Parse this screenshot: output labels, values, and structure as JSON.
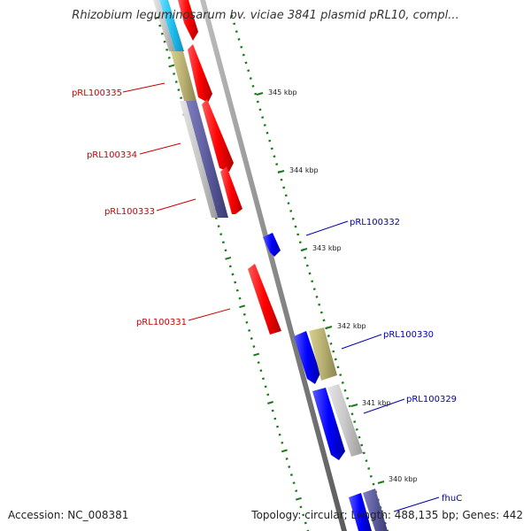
{
  "title": "Rhizobium leguminosarum bv. viciae 3841 plasmid pRL10, compl...",
  "footer": {
    "accession": "Accession: NC_008381",
    "summary": "Topology: circular; Length: 488,135 bp; Genes: 442"
  },
  "scale_labels": [
    "345 kbp",
    "344 kbp",
    "343 kbp",
    "342 kbp",
    "341 kbp",
    "340 kbp"
  ],
  "genes": {
    "reverse": [
      {
        "name": "pRL100335",
        "color": "#cc0000"
      },
      {
        "name": "pRL100334",
        "color": "#cc0000"
      },
      {
        "name": "pRL100333",
        "color": "#cc0000"
      },
      {
        "name": "pRL100331",
        "color": "#cc0000"
      }
    ],
    "forward": [
      {
        "name": "pRL100332",
        "color": "#0000aa"
      },
      {
        "name": "pRL100330",
        "color": "#0000aa"
      },
      {
        "name": "pRL100329",
        "color": "#0000aa"
      },
      {
        "name": "fhuC",
        "color": "#0000aa"
      }
    ]
  },
  "colors": {
    "forward_cds": "#0000ff",
    "reverse_cds": "#ff0000",
    "backbone": "#8a8a8a",
    "tick": "#1a7a1a",
    "orf_olive": "#b8b070",
    "orf_slate": "#5c5c9e",
    "orf_cyan": "#20c0f0",
    "orf_grey": "#c8c8c8"
  }
}
